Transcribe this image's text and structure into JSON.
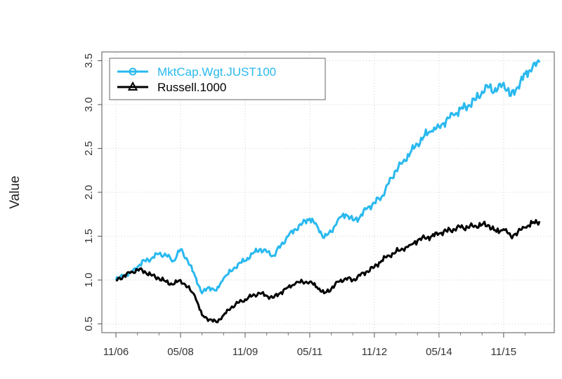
{
  "chart_data": {
    "type": "line",
    "title": "",
    "xlabel": "",
    "ylabel": "Value",
    "x_tick_labels": [
      "11/06",
      "05/08",
      "11/09",
      "05/11",
      "11/12",
      "05/14",
      "11/15"
    ],
    "y_ticks": [
      "0.5",
      "1.0",
      "1.5",
      "2.0",
      "2.5",
      "3.0",
      "3.5"
    ],
    "ylim": [
      0.4,
      3.6
    ],
    "grid": true,
    "legend_position": "top-left",
    "x": [
      "11/06",
      "01/07",
      "03/07",
      "05/07",
      "07/07",
      "09/07",
      "11/07",
      "01/08",
      "03/08",
      "05/08",
      "07/08",
      "09/08",
      "11/08",
      "01/09",
      "03/09",
      "05/09",
      "07/09",
      "09/09",
      "11/09",
      "01/10",
      "03/10",
      "05/10",
      "07/10",
      "09/10",
      "11/10",
      "01/11",
      "03/11",
      "05/11",
      "07/11",
      "09/11",
      "11/11",
      "01/12",
      "03/12",
      "05/12",
      "07/12",
      "09/12",
      "11/12",
      "01/13",
      "03/13",
      "05/13",
      "07/13",
      "09/13",
      "11/13",
      "01/14",
      "03/14",
      "05/14",
      "07/14",
      "09/14",
      "11/14",
      "01/15",
      "03/15",
      "05/15",
      "07/15",
      "09/15",
      "11/15",
      "01/16",
      "03/16",
      "05/16",
      "07/16",
      "09/16"
    ],
    "series": [
      {
        "name": "MktCap.Wgt.JUST100",
        "color": "#29b9ee",
        "marker": "circle",
        "values": [
          1.0,
          1.05,
          1.08,
          1.15,
          1.22,
          1.25,
          1.3,
          1.28,
          1.22,
          1.35,
          1.22,
          1.05,
          0.85,
          0.92,
          0.88,
          1.02,
          1.1,
          1.18,
          1.22,
          1.3,
          1.35,
          1.32,
          1.28,
          1.4,
          1.5,
          1.58,
          1.65,
          1.7,
          1.62,
          1.48,
          1.55,
          1.7,
          1.75,
          1.68,
          1.72,
          1.82,
          1.88,
          1.95,
          2.1,
          2.25,
          2.35,
          2.45,
          2.55,
          2.65,
          2.7,
          2.75,
          2.82,
          2.88,
          2.95,
          2.98,
          3.05,
          3.15,
          3.2,
          3.15,
          3.25,
          3.1,
          3.2,
          3.35,
          3.42,
          3.48
        ]
      },
      {
        "name": "Russell.1000",
        "color": "#000000",
        "marker": "triangle",
        "values": [
          1.0,
          1.04,
          1.08,
          1.12,
          1.1,
          1.05,
          1.02,
          0.98,
          0.95,
          1.0,
          0.92,
          0.82,
          0.6,
          0.55,
          0.52,
          0.6,
          0.68,
          0.74,
          0.78,
          0.82,
          0.85,
          0.82,
          0.8,
          0.86,
          0.92,
          0.96,
          0.98,
          0.98,
          0.92,
          0.85,
          0.9,
          0.98,
          1.02,
          1.0,
          1.05,
          1.1,
          1.15,
          1.22,
          1.28,
          1.32,
          1.35,
          1.4,
          1.45,
          1.48,
          1.5,
          1.53,
          1.56,
          1.58,
          1.6,
          1.6,
          1.62,
          1.63,
          1.62,
          1.55,
          1.58,
          1.5,
          1.55,
          1.6,
          1.65,
          1.67
        ]
      }
    ]
  }
}
